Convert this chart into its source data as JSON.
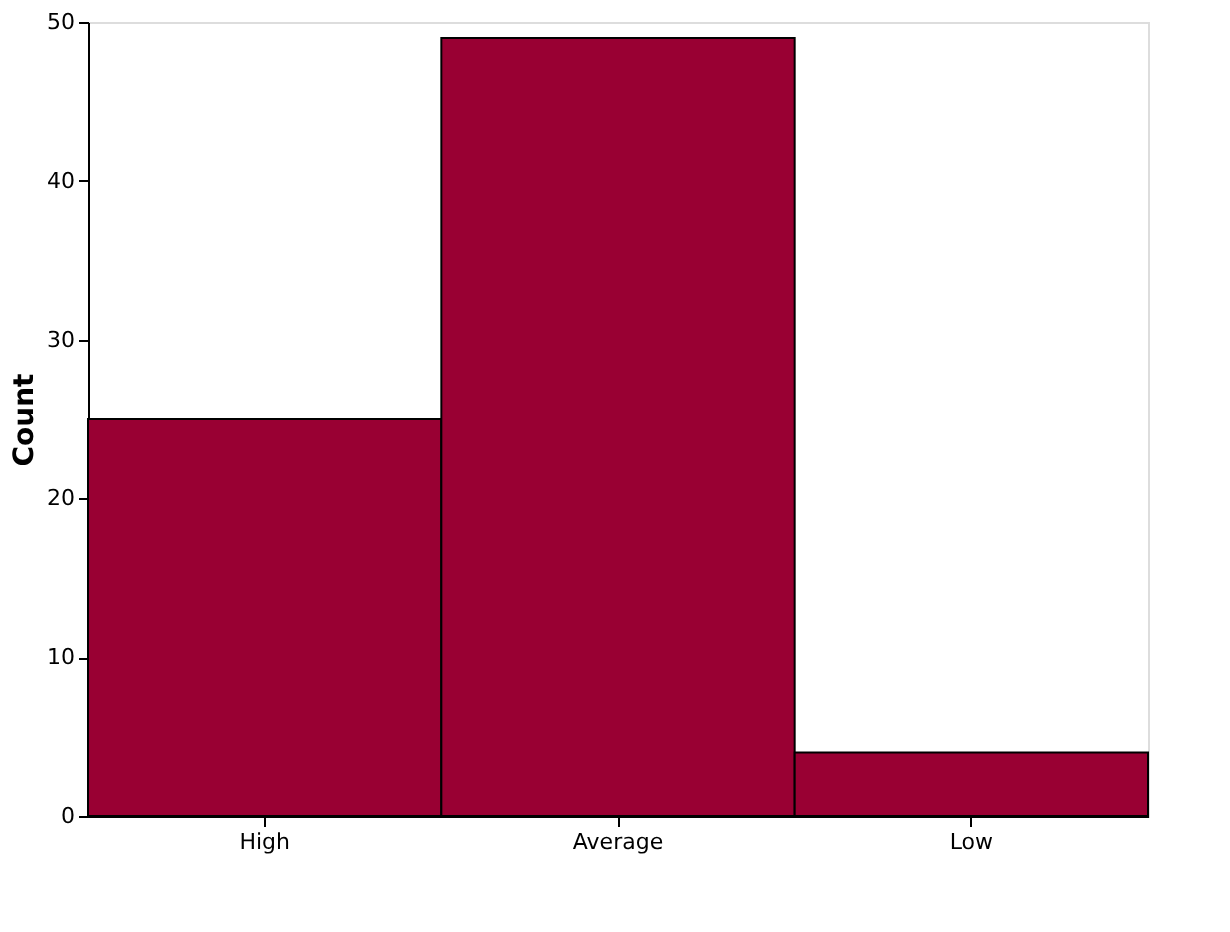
{
  "chart_data": {
    "type": "bar",
    "ylabel": "Count",
    "categories": [
      "High",
      "Average",
      "Low"
    ],
    "values": [
      25,
      49,
      4
    ],
    "color": "#990033",
    "ylim": [
      0,
      50
    ],
    "yticks": [
      0,
      10,
      20,
      30,
      40,
      50
    ],
    "grid": false
  }
}
